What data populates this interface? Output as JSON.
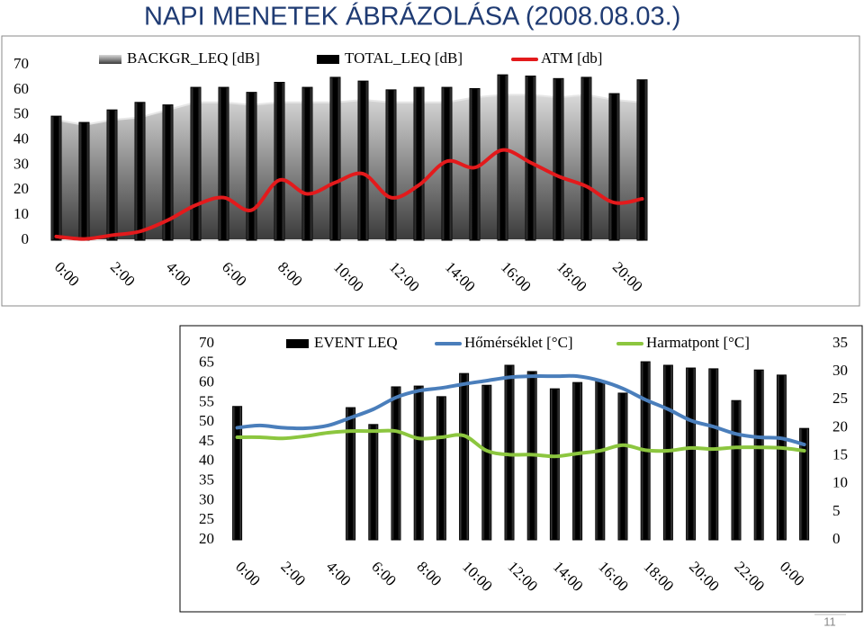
{
  "title": "NAPI MENETEK ÁBRÁZOLÁSA (2008.08.03.)",
  "page_number": "11",
  "chart_data": [
    {
      "type": "combo",
      "categories": [
        "0:00",
        null,
        "2:00",
        null,
        "4:00",
        null,
        "6:00",
        null,
        "8:00",
        null,
        "10:00",
        null,
        "12:00",
        null,
        "14:00",
        null,
        "16:00",
        null,
        "18:00",
        null,
        "20:00",
        null
      ],
      "ylim": [
        0,
        70
      ],
      "yticks": [
        0,
        10,
        20,
        30,
        40,
        50,
        60,
        70
      ],
      "series": [
        {
          "name": "BACKGR_LEQ [dB]",
          "type": "area",
          "color": "#9a9a9a",
          "values": [
            48,
            46,
            48,
            49,
            52,
            55,
            55,
            54,
            55,
            55,
            55,
            56,
            55,
            55,
            55,
            57,
            58,
            58,
            57,
            58,
            56,
            55
          ]
        },
        {
          "name": "TOTAL_LEQ [dB]",
          "type": "bar",
          "color": "#000000",
          "values": [
            49.5,
            47,
            52,
            55,
            54,
            61,
            61,
            59,
            63,
            61,
            65,
            63.5,
            60,
            61,
            61,
            60.5,
            66,
            65.5,
            64.5,
            65,
            58.5,
            64
          ]
        },
        {
          "name": "ATM [db]",
          "type": "line",
          "color": "#e31a1c",
          "values": [
            1.5,
            0.5,
            2,
            3.5,
            8,
            14,
            17,
            12,
            24,
            18.5,
            23,
            26.5,
            17,
            22,
            31.5,
            29,
            36,
            31,
            25.5,
            21.5,
            15,
            16.5
          ]
        }
      ]
    },
    {
      "type": "combo",
      "categories": [
        "0:00",
        null,
        "2:00",
        null,
        "4:00",
        null,
        "6:00",
        null,
        "8:00",
        null,
        "10:00",
        null,
        "12:00",
        null,
        "14:00",
        null,
        "16:00",
        null,
        "18:00",
        null,
        "20:00",
        null,
        "22:00",
        null,
        "0:00",
        null
      ],
      "ylim": [
        20,
        70
      ],
      "yticks": [
        20,
        25,
        30,
        35,
        40,
        45,
        50,
        55,
        60,
        65,
        70
      ],
      "y2lim": [
        0,
        35
      ],
      "y2ticks": [
        0,
        5,
        10,
        15,
        20,
        25,
        30,
        35
      ],
      "series": [
        {
          "name": "EVENT LEQ",
          "type": "bar",
          "color": "#000000",
          "values": [
            54,
            null,
            null,
            null,
            null,
            53.7,
            49.4,
            59,
            59.2,
            56.5,
            62.4,
            59.4,
            64.5,
            62.9,
            58.5,
            60.1,
            60.4,
            57.4,
            65.4,
            64.5,
            63.8,
            63.6,
            55.5,
            63.3,
            62,
            48.4
          ]
        },
        {
          "name": "Hőmérséklet [°C]",
          "type": "line",
          "axis": "y2",
          "color": "#4a7ebb",
          "values": [
            20,
            20.4,
            20,
            19.9,
            20.4,
            21.8,
            23.3,
            25.4,
            26.6,
            27.1,
            27.8,
            28.4,
            29,
            29.2,
            29.2,
            29.2,
            28.4,
            27,
            25,
            23.3,
            21.3,
            20.2,
            18.9,
            18.3,
            18.1,
            17
          ]
        },
        {
          "name": "Harmatpont [°C]",
          "type": "line",
          "axis": "y2",
          "color": "#8cc63f",
          "values": [
            18.3,
            18.3,
            18.1,
            18.5,
            19.1,
            19.4,
            19.4,
            19.4,
            18.1,
            18.3,
            18.6,
            15.9,
            15.2,
            15.2,
            14.9,
            15.4,
            15.9,
            16.9,
            16,
            15.9,
            16.4,
            16.2,
            16.5,
            16.5,
            16.4,
            15.9
          ]
        }
      ]
    }
  ]
}
